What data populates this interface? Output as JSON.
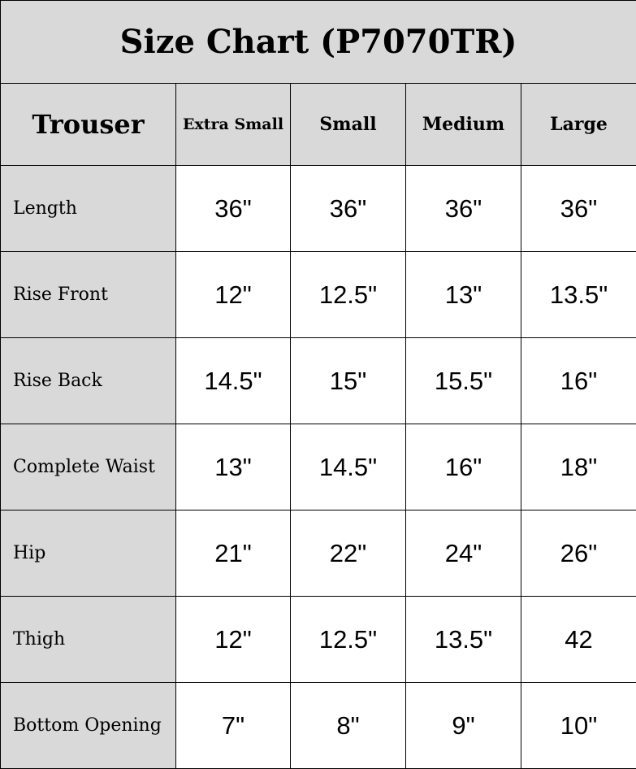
{
  "title": "Size Chart (P7070TR)",
  "header": {
    "first": "Trouser",
    "sizes": [
      "Extra Small",
      "Small",
      "Medium",
      "Large"
    ]
  },
  "rows": [
    {
      "label": "Length",
      "values": [
        "36\"",
        "36\"",
        "36\"",
        "36\""
      ]
    },
    {
      "label": "Rise Front",
      "values": [
        "12\"",
        "12.5\"",
        "13\"",
        "13.5\""
      ]
    },
    {
      "label": "Rise Back",
      "values": [
        "14.5\"",
        "15\"",
        "15.5\"",
        "16\""
      ]
    },
    {
      "label": "Complete Waist",
      "values": [
        "13\"",
        "14.5\"",
        "16\"",
        "18\""
      ]
    },
    {
      "label": "Hip",
      "values": [
        "21\"",
        "22\"",
        "24\"",
        "26\""
      ]
    },
    {
      "label": "Thigh",
      "values": [
        "12\"",
        "12.5\"",
        "13.5\"",
        "42"
      ]
    },
    {
      "label": "Bottom Opening",
      "values": [
        "7\"",
        "8\"",
        "9\"",
        "10\""
      ]
    }
  ],
  "colors": {
    "header_bg": "#d9d9d9",
    "border": "#000000"
  }
}
